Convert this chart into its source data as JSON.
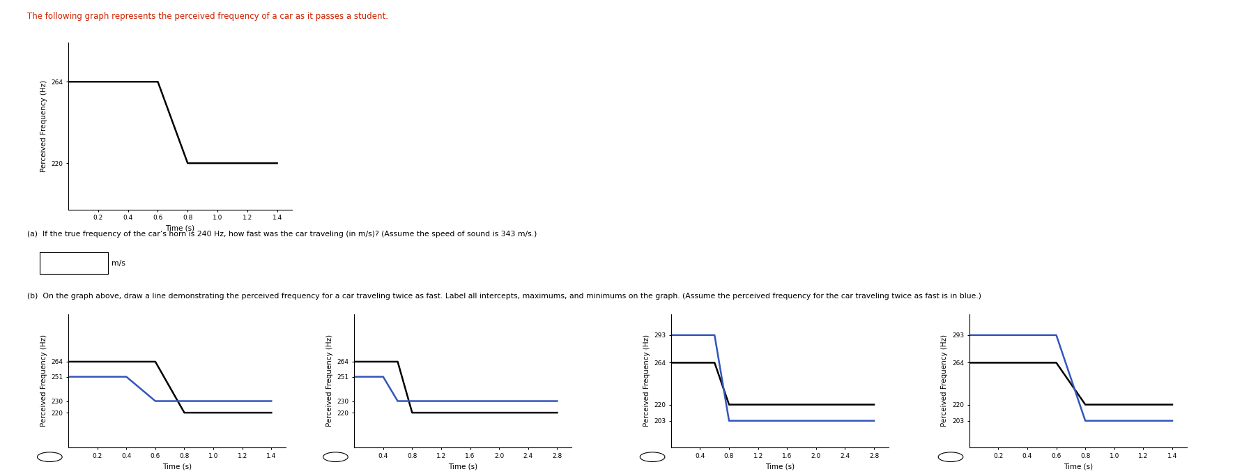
{
  "title": "The following graph represents the perceived frequency of a car as it passes a student.",
  "top_graph": {
    "black_x": [
      0.0,
      0.6,
      0.6,
      0.8,
      0.8,
      1.4
    ],
    "black_y": [
      264,
      264,
      264,
      220,
      220,
      220
    ],
    "yticks": [
      220,
      264
    ],
    "xticks": [
      0.2,
      0.4,
      0.6,
      0.8,
      1.0,
      1.2,
      1.4
    ],
    "xlabel": "Time (s)",
    "ylabel": "Perceived Frequency (Hz)",
    "ylim": [
      195,
      285
    ],
    "xlim": [
      0.0,
      1.5
    ]
  },
  "question_a": "(a)  If the true frequency of the car’s horn is 240 Hz, how fast was the car traveling (in m/s)? (Assume the speed of sound is 343 m/s.)",
  "question_b": "(b)  On the graph above, draw a line demonstrating the perceived frequency for a car traveling twice as fast. Label all intercepts, maximums, and minimums on the graph. (Assume the perceived frequency for the car traveling twice as fast is in blue.)",
  "subplots": [
    {
      "id": 1,
      "ylabel": "Perceived Frequency (Hz)",
      "xlabel": "Time (s)",
      "xticks": [
        0.2,
        0.4,
        0.6,
        0.8,
        1.0,
        1.2,
        1.4
      ],
      "xticklabels": [
        "0.2",
        "0.4",
        "0.6",
        "0.8",
        "1.0",
        "1.2",
        "1.4"
      ],
      "xlim": [
        0.0,
        1.5
      ],
      "ylim": [
        190,
        305
      ],
      "yticks_all": [
        220,
        230,
        251,
        264
      ],
      "black_x": [
        0.0,
        0.6,
        0.6,
        0.8,
        0.8,
        1.4
      ],
      "black_y": [
        264,
        264,
        264,
        220,
        220,
        220
      ],
      "blue_x": [
        0.0,
        0.4,
        0.4,
        0.6,
        0.6,
        1.4
      ],
      "blue_y": [
        251,
        251,
        251,
        230,
        230,
        230
      ]
    },
    {
      "id": 2,
      "ylabel": "Perceived Frequency (Hz)",
      "xlabel": "Time (s)",
      "xticks": [
        0.4,
        0.8,
        1.2,
        1.6,
        2.0,
        2.4,
        2.8
      ],
      "xticklabels": [
        "0.4",
        "0.8",
        "1.2",
        "1.6",
        "2.0",
        "2.4",
        "2.8"
      ],
      "xlim": [
        0.0,
        3.0
      ],
      "ylim": [
        190,
        305
      ],
      "yticks_all": [
        220,
        230,
        251,
        264
      ],
      "black_x": [
        0.0,
        0.6,
        0.6,
        0.8,
        0.8,
        2.8
      ],
      "black_y": [
        264,
        264,
        264,
        220,
        220,
        220
      ],
      "blue_x": [
        0.0,
        0.4,
        0.4,
        0.6,
        0.6,
        2.8
      ],
      "blue_y": [
        251,
        251,
        251,
        230,
        230,
        230
      ]
    },
    {
      "id": 3,
      "ylabel": "Perceived Frequency (Hz)",
      "xlabel": "Time (s)",
      "xticks": [
        0.4,
        0.8,
        1.2,
        1.6,
        2.0,
        2.4,
        2.8
      ],
      "xticklabels": [
        "0.4",
        "0.8",
        "1.2",
        "1.6",
        "2.0",
        "2.4",
        "2.8"
      ],
      "xlim": [
        0.0,
        3.0
      ],
      "ylim": [
        175,
        315
      ],
      "yticks_all": [
        203,
        220,
        264,
        293
      ],
      "black_x": [
        0.0,
        0.6,
        0.6,
        0.8,
        0.8,
        2.8
      ],
      "black_y": [
        264,
        264,
        264,
        220,
        220,
        220
      ],
      "blue_x": [
        0.0,
        0.6,
        0.6,
        0.8,
        0.8,
        2.8
      ],
      "blue_y": [
        293,
        293,
        293,
        203,
        203,
        203
      ]
    },
    {
      "id": 4,
      "ylabel": "Perceived Frequency (Hz)",
      "xlabel": "Time (s)",
      "xticks": [
        0.2,
        0.4,
        0.6,
        0.8,
        1.0,
        1.2,
        1.4
      ],
      "xticklabels": [
        "0.2",
        "0.4",
        "0.6",
        "0.8",
        "1.0",
        "1.2",
        "1.4"
      ],
      "xlim": [
        0.0,
        1.5
      ],
      "ylim": [
        175,
        315
      ],
      "yticks_all": [
        203,
        220,
        264,
        293
      ],
      "black_x": [
        0.0,
        0.6,
        0.6,
        0.8,
        0.8,
        1.4
      ],
      "black_y": [
        264,
        264,
        264,
        220,
        220,
        220
      ],
      "blue_x": [
        0.0,
        0.6,
        0.6,
        0.8,
        0.8,
        1.4
      ],
      "blue_y": [
        293,
        293,
        293,
        203,
        203,
        203
      ]
    }
  ],
  "bg_color": "#ffffff",
  "title_color": "#cc2200",
  "qa_color": "#000000",
  "black_line_color": "#000000",
  "blue_line_color": "#3355bb",
  "line_width": 1.8,
  "font_size_title": 8.5,
  "font_size_label": 7.5,
  "font_size_tick": 6.5,
  "font_size_qa": 7.8
}
